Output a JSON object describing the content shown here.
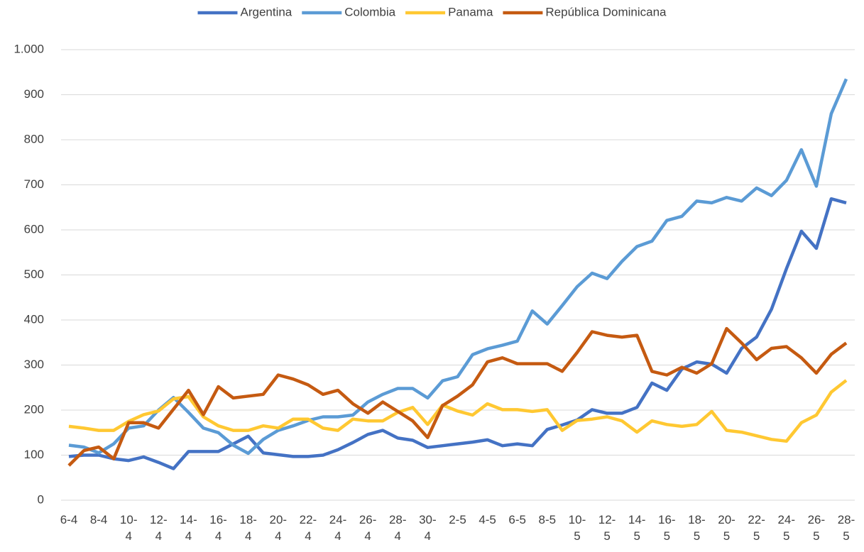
{
  "chart_data": {
    "type": "line",
    "categories": [
      "6-4",
      null,
      "8-4",
      null,
      "10-4",
      null,
      "12-4",
      null,
      "14-4",
      null,
      "16-4",
      null,
      "18-4",
      null,
      "20-4",
      null,
      "22-4",
      null,
      "24-4",
      null,
      "26-4",
      null,
      "28-4",
      null,
      "30-4",
      null,
      "2-5",
      null,
      "4-5",
      null,
      "6-5",
      null,
      "8-5",
      null,
      "10-5",
      null,
      "12-5",
      null,
      "14-5",
      null,
      "16-5",
      null,
      "18-5",
      null,
      "20-5",
      null,
      "22-5",
      null,
      "24-5",
      null,
      "26-5",
      null,
      "28-5"
    ],
    "series": [
      {
        "name": "Argentina",
        "color": "#4472c4",
        "values": [
          97,
          100,
          100,
          92,
          88,
          96,
          84,
          70,
          108,
          108,
          108,
          125,
          142,
          105,
          101,
          97,
          97,
          100,
          112,
          128,
          146,
          155,
          138,
          133,
          117,
          121,
          125,
          129,
          134,
          121,
          125,
          121,
          157,
          167,
          178,
          201,
          193,
          193,
          206,
          260,
          244,
          291,
          307,
          302,
          282,
          337,
          362,
          424,
          514,
          597,
          559,
          669,
          660
        ]
      },
      {
        "name": "Colombia",
        "color": "#5b9bd5",
        "values": [
          122,
          118,
          105,
          125,
          160,
          165,
          200,
          228,
          195,
          160,
          150,
          122,
          104,
          135,
          155,
          165,
          177,
          185,
          185,
          189,
          218,
          235,
          248,
          248,
          227,
          265,
          274,
          323,
          336,
          344,
          353,
          420,
          391,
          432,
          474,
          504,
          492,
          530,
          563,
          575,
          621,
          630,
          664,
          660,
          672,
          664,
          693,
          676,
          710,
          778,
          697,
          858,
          935
        ]
      },
      {
        "name": "Panama",
        "color": "#ffc832",
        "values": [
          164,
          160,
          155,
          155,
          175,
          190,
          198,
          225,
          230,
          185,
          165,
          155,
          155,
          165,
          160,
          180,
          180,
          160,
          155,
          180,
          176,
          176,
          195,
          206,
          168,
          211,
          198,
          189,
          214,
          201,
          201,
          197,
          201,
          155,
          177,
          180,
          185,
          176,
          151,
          176,
          168,
          164,
          168,
          197,
          155,
          151,
          143,
          135,
          131,
          172,
          189,
          240,
          266
        ]
      },
      {
        "name": "República Dominicana",
        "color": "#c55a11",
        "values": [
          77,
          110,
          118,
          92,
          172,
          172,
          160,
          202,
          244,
          190,
          252,
          227,
          231,
          235,
          278,
          269,
          256,
          235,
          244,
          214,
          193,
          218,
          197,
          176,
          139,
          210,
          231,
          256,
          307,
          316,
          303,
          303,
          303,
          286,
          328,
          374,
          366,
          362,
          366,
          286,
          278,
          295,
          282,
          303,
          381,
          349,
          312,
          337,
          341,
          316,
          282,
          324,
          349
        ]
      }
    ],
    "ylim": [
      0,
      1000
    ],
    "yticks": [
      0,
      100,
      200,
      300,
      400,
      500,
      600,
      700,
      800,
      900,
      {
        "value": 1000,
        "label": "1.000"
      }
    ],
    "grid": true,
    "legend": "top"
  }
}
